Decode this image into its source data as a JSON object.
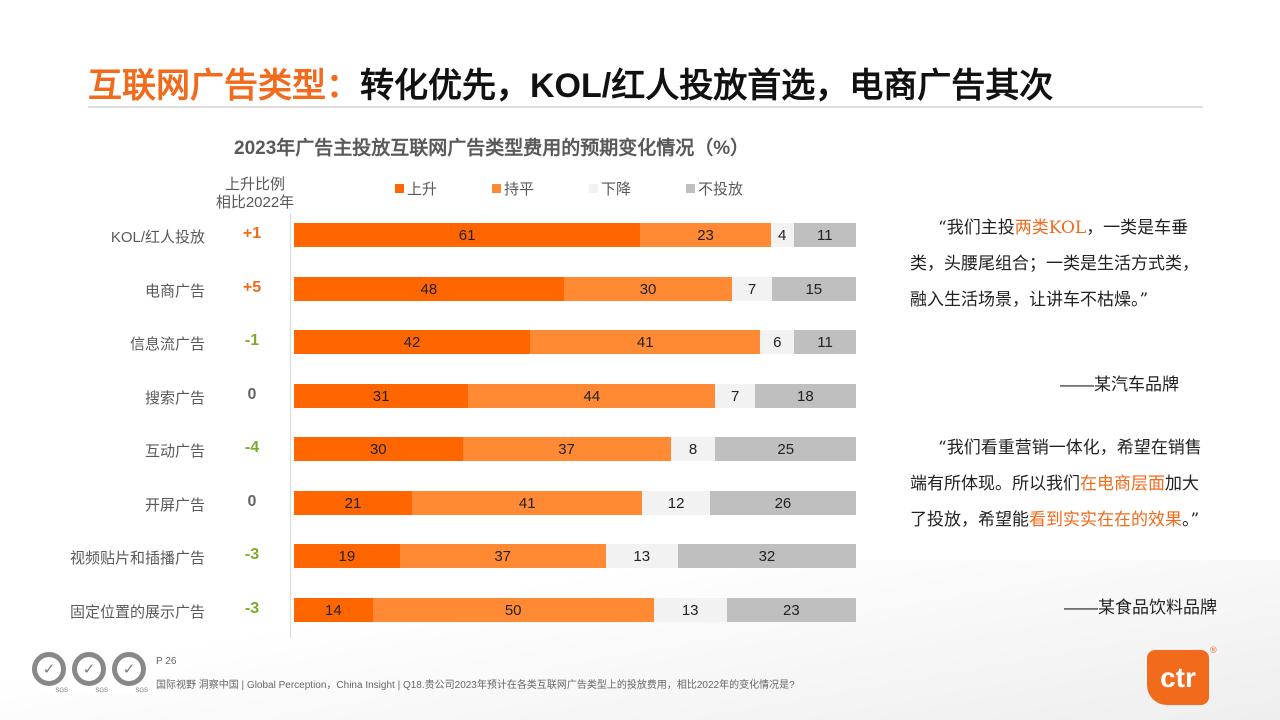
{
  "title": {
    "highlight": "互联网广告类型：",
    "rest": "转化优先，KOL/红人投放首选，电商广告其次"
  },
  "chart_data": {
    "type": "bar",
    "stacked": true,
    "orientation": "horizontal",
    "title": "2023年广告主投放互联网广告类型费用的预期变化情况（%）",
    "change_header": [
      "上升比例",
      "相比2022年"
    ],
    "categories": [
      "KOL/红人投放",
      "电商广告",
      "信息流广告",
      "搜索广告",
      "互动广告",
      "开屏广告",
      "视频贴片和插播广告",
      "固定位置的展示广告"
    ],
    "changes": [
      "+1",
      "+5",
      "-1",
      "0",
      "-4",
      "0",
      "-3",
      "-3"
    ],
    "legend_position": "top",
    "series": [
      {
        "name": "上升",
        "color": "#FF6600",
        "values": [
          61,
          48,
          42,
          31,
          30,
          21,
          19,
          14
        ]
      },
      {
        "name": "持平",
        "color": "#FF8A33",
        "values": [
          23,
          30,
          41,
          44,
          37,
          41,
          37,
          50
        ]
      },
      {
        "name": "下降",
        "color": "#F2F2F2",
        "values": [
          4,
          7,
          6,
          7,
          8,
          12,
          13,
          13
        ]
      },
      {
        "name": "不投放",
        "color": "#BFBFBF",
        "values": [
          11,
          15,
          11,
          18,
          25,
          26,
          32,
          23
        ]
      }
    ],
    "change_colors": {
      "positive": "#F26A1B",
      "negative": "#7CAB2C",
      "zero": "#666666"
    }
  },
  "quotes": [
    {
      "segments": [
        {
          "t": "“我们主投"
        },
        {
          "t": "两类KOL",
          "hl": true
        },
        {
          "t": "，一类是车垂类，头腰尾组合；一类是生活方式类，融入生活场景，让讲车不枯燥。”"
        }
      ],
      "source": "——某汽车品牌"
    },
    {
      "segments": [
        {
          "t": "“我们看重营销一体化，希望在销售端有所体现。所以我们"
        },
        {
          "t": "在电商层面",
          "hl": true
        },
        {
          "t": "加大了投放，希望能"
        },
        {
          "t": "看到实实在在的效果",
          "hl": true
        },
        {
          "t": "。”"
        }
      ],
      "source": "——某食品饮料品牌"
    }
  ],
  "footer": {
    "page": "P 26",
    "text": "国际视野  洞察中国 |  Global Perception，China Insight  |  Q18.贵公司2023年预计在各类互联网广告类型上的投放费用，相比2022年的变化情况是?",
    "sgs": "SGS",
    "logo": "ctr"
  }
}
